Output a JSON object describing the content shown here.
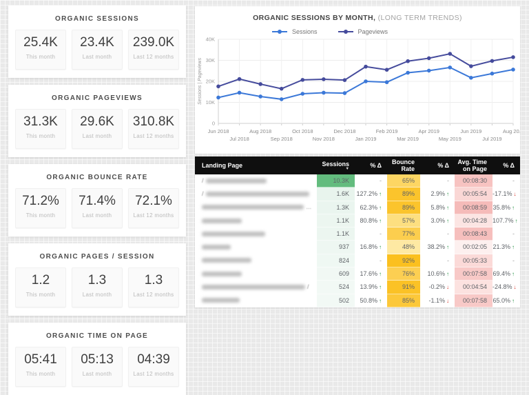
{
  "colors": {
    "sessions_line": "#3b78d8",
    "pageviews_line": "#454b9c",
    "table_header_bg": "#0f0f0f",
    "highlight_green": "#63bc7e",
    "trend_up": "#1e8e3e",
    "trend_down": "#d93025"
  },
  "icons": {
    "sort_desc": "▼",
    "trend_up": "↑",
    "trend_down": "↓"
  },
  "scorecards": {
    "sections": [
      {
        "title": "ORGANIC SESSIONS",
        "tiles": [
          {
            "value": "25.4K",
            "label": "This month"
          },
          {
            "value": "23.4K",
            "label": "Last month"
          },
          {
            "value": "239.0K",
            "label": "Last 12 months"
          }
        ]
      },
      {
        "title": "ORGANIC PAGEVIEWS",
        "tiles": [
          {
            "value": "31.3K",
            "label": "This month"
          },
          {
            "value": "29.6K",
            "label": "Last month"
          },
          {
            "value": "310.8K",
            "label": "Last 12 months"
          }
        ]
      },
      {
        "title": "ORGANIC BOUNCE RATE",
        "tiles": [
          {
            "value": "71.2%",
            "label": "This month"
          },
          {
            "value": "71.4%",
            "label": "Last month"
          },
          {
            "value": "72.1%",
            "label": "Last 12 months"
          }
        ]
      },
      {
        "title": "ORGANIC PAGES / SESSION",
        "tiles": [
          {
            "value": "1.2",
            "label": "This month"
          },
          {
            "value": "1.3",
            "label": "Last month"
          },
          {
            "value": "1.3",
            "label": "Last 12 months"
          }
        ]
      },
      {
        "title": "ORGANIC TIME ON PAGE",
        "tiles": [
          {
            "value": "05:41",
            "label": "This month"
          },
          {
            "value": "05:13",
            "label": "Last month"
          },
          {
            "value": "04:39",
            "label": "Last 12 months"
          }
        ]
      }
    ]
  },
  "chart": {
    "title_bold": "ORGANIC SESSIONS BY MONTH,",
    "title_light": " (LONG TERM TRENDS)",
    "y_axis_label": "Sessions | Pageviews"
  },
  "chart_data": {
    "type": "line",
    "title": "ORGANIC SESSIONS BY MONTH, (LONG TERM TRENDS)",
    "xlabel": "",
    "ylabel": "Sessions | Pageviews",
    "ylim": [
      0,
      40000
    ],
    "grid": true,
    "legend_position": "top-left",
    "yticks": [
      {
        "value": 40000,
        "label": "40K"
      },
      {
        "value": 30000,
        "label": "30K"
      },
      {
        "value": 20000,
        "label": "20K"
      },
      {
        "value": 10000,
        "label": "10K"
      },
      {
        "value": 0,
        "label": "0"
      }
    ],
    "x": [
      "Jun 2018",
      "Jul 2018",
      "Aug 2018",
      "Sep 2018",
      "Oct 2018",
      "Nov 2018",
      "Dec 2018",
      "Jan 2019",
      "Feb 2019",
      "Mar 2019",
      "Apr 2019",
      "May 2019",
      "Jun 2019",
      "Jul 2019",
      "Aug 20..."
    ],
    "series": [
      {
        "name": "Sessions",
        "color": "#3b78d8",
        "values": [
          12300,
          14600,
          12800,
          11500,
          14100,
          14600,
          14400,
          20000,
          19600,
          24100,
          25100,
          26600,
          21700,
          23700,
          25600
        ]
      },
      {
        "name": "Pageviews",
        "color": "#454b9c",
        "values": [
          17600,
          21100,
          18700,
          16500,
          20700,
          21000,
          20600,
          27000,
          25500,
          29600,
          31000,
          33100,
          27200,
          29700,
          31500
        ]
      }
    ]
  },
  "table": {
    "columns": [
      {
        "label": "Landing Page",
        "align": "left"
      },
      {
        "label": "Sessions",
        "align": "right",
        "sort": "desc"
      },
      {
        "label": "% Δ",
        "align": "right"
      },
      {
        "label": "Bounce Rate",
        "align": "right"
      },
      {
        "label": "% Δ",
        "align": "right"
      },
      {
        "label": "Avg. Time on Page",
        "align": "right"
      },
      {
        "label": "% Δ",
        "align": "right"
      }
    ],
    "rows": [
      {
        "page": "(redacted)",
        "prefix": "/",
        "suffix": "",
        "bar": 88,
        "sessions": "10.3K",
        "sessions_bg": "#63bc7e",
        "d_sessions": "-",
        "d_sessions_dir": "",
        "bounce": "65%",
        "bounce_bg": "#fdd663",
        "d_bounce": "-",
        "d_bounce_dir": "",
        "time": "00:08:30",
        "time_bg": "#f7c3c1",
        "d_time": "-",
        "d_time_dir": ""
      },
      {
        "page": "(redacted)",
        "prefix": "/",
        "suffix": "",
        "bar": 230,
        "sessions": "1.6K",
        "sessions_bg": "#e8f4ed",
        "d_sessions": "127.2%",
        "d_sessions_dir": "up",
        "bounce": "89%",
        "bounce_bg": "#fbc42c",
        "d_bounce": "2.9%",
        "d_bounce_dir": "up",
        "time": "00:05:54",
        "time_bg": "#fad7d5",
        "d_time": "-17.1%",
        "d_time_dir": "down"
      },
      {
        "page": "(redacted)",
        "prefix": "",
        "suffix": "...",
        "bar": 228,
        "sessions": "1.3K",
        "sessions_bg": "#eaf5ef",
        "d_sessions": "62.3%",
        "d_sessions_dir": "up",
        "bounce": "89%",
        "bounce_bg": "#fbc42c",
        "d_bounce": "5.8%",
        "d_bounce_dir": "up",
        "time": "00:08:59",
        "time_bg": "#f5bbb9",
        "d_time": "35.8%",
        "d_time_dir": "up"
      },
      {
        "page": "(redacted)",
        "prefix": "",
        "suffix": "",
        "bar": 58,
        "sessions": "1.1K",
        "sessions_bg": "#ecf6f0",
        "d_sessions": "80.8%",
        "d_sessions_dir": "up",
        "bounce": "57%",
        "bounce_bg": "#fddf80",
        "d_bounce": "3.0%",
        "d_bounce_dir": "up",
        "time": "00:04:28",
        "time_bg": "#fce5e3",
        "d_time": "107.7%",
        "d_time_dir": "up"
      },
      {
        "page": "(redacted)",
        "prefix": "",
        "suffix": "",
        "bar": 92,
        "sessions": "1.1K",
        "sessions_bg": "#ecf6f0",
        "d_sessions": "-",
        "d_sessions_dir": "",
        "bounce": "77%",
        "bounce_bg": "#fcce4e",
        "d_bounce": "-",
        "d_bounce_dir": "",
        "time": "00:08:43",
        "time_bg": "#f6bfbd",
        "d_time": "-",
        "d_time_dir": ""
      },
      {
        "page": "(redacted)",
        "prefix": "",
        "suffix": "",
        "bar": 42,
        "sessions": "937",
        "sessions_bg": "#eef7f2",
        "d_sessions": "16.8%",
        "d_sessions_dir": "up",
        "bounce": "48%",
        "bounce_bg": "#fee9a3",
        "d_bounce": "38.2%",
        "d_bounce_dir": "up",
        "time": "00:02:05",
        "time_bg": "#fdf0ef",
        "d_time": "21.3%",
        "d_time_dir": "up"
      },
      {
        "page": "(redacted)",
        "prefix": "",
        "suffix": "",
        "bar": 72,
        "sessions": "824",
        "sessions_bg": "#eff8f3",
        "d_sessions": "-",
        "d_sessions_dir": "",
        "bounce": "92%",
        "bounce_bg": "#fbc01f",
        "d_bounce": "-",
        "d_bounce_dir": "",
        "time": "00:05:33",
        "time_bg": "#fbdad8",
        "d_time": "-",
        "d_time_dir": ""
      },
      {
        "page": "(redacted)",
        "prefix": "",
        "suffix": "",
        "bar": 58,
        "sessions": "609",
        "sessions_bg": "#f1f8f4",
        "d_sessions": "17.6%",
        "d_sessions_dir": "up",
        "bounce": "76%",
        "bounce_bg": "#fccf52",
        "d_bounce": "10.6%",
        "d_bounce_dir": "up",
        "time": "00:07:58",
        "time_bg": "#f8c9c7",
        "d_time": "69.4%",
        "d_time_dir": "up"
      },
      {
        "page": "(redacted)",
        "prefix": "",
        "suffix": "/",
        "bar": 158,
        "sessions": "524",
        "sessions_bg": "#f2f9f5",
        "d_sessions": "13.9%",
        "d_sessions_dir": "up",
        "bounce": "91%",
        "bounce_bg": "#fbc226",
        "d_bounce": "-0.2%",
        "d_bounce_dir": "down",
        "time": "00:04:54",
        "time_bg": "#fce2e0",
        "d_time": "-24.8%",
        "d_time_dir": "down"
      },
      {
        "page": "(redacted)",
        "prefix": "",
        "suffix": "",
        "bar": 55,
        "sessions": "502",
        "sessions_bg": "#f2f9f5",
        "d_sessions": "50.8%",
        "d_sessions_dir": "up",
        "bounce": "85%",
        "bounce_bg": "#fcc83a",
        "d_bounce": "-1.1%",
        "d_bounce_dir": "down",
        "time": "00:07:58",
        "time_bg": "#f8c9c7",
        "d_time": "65.0%",
        "d_time_dir": "up"
      }
    ]
  }
}
